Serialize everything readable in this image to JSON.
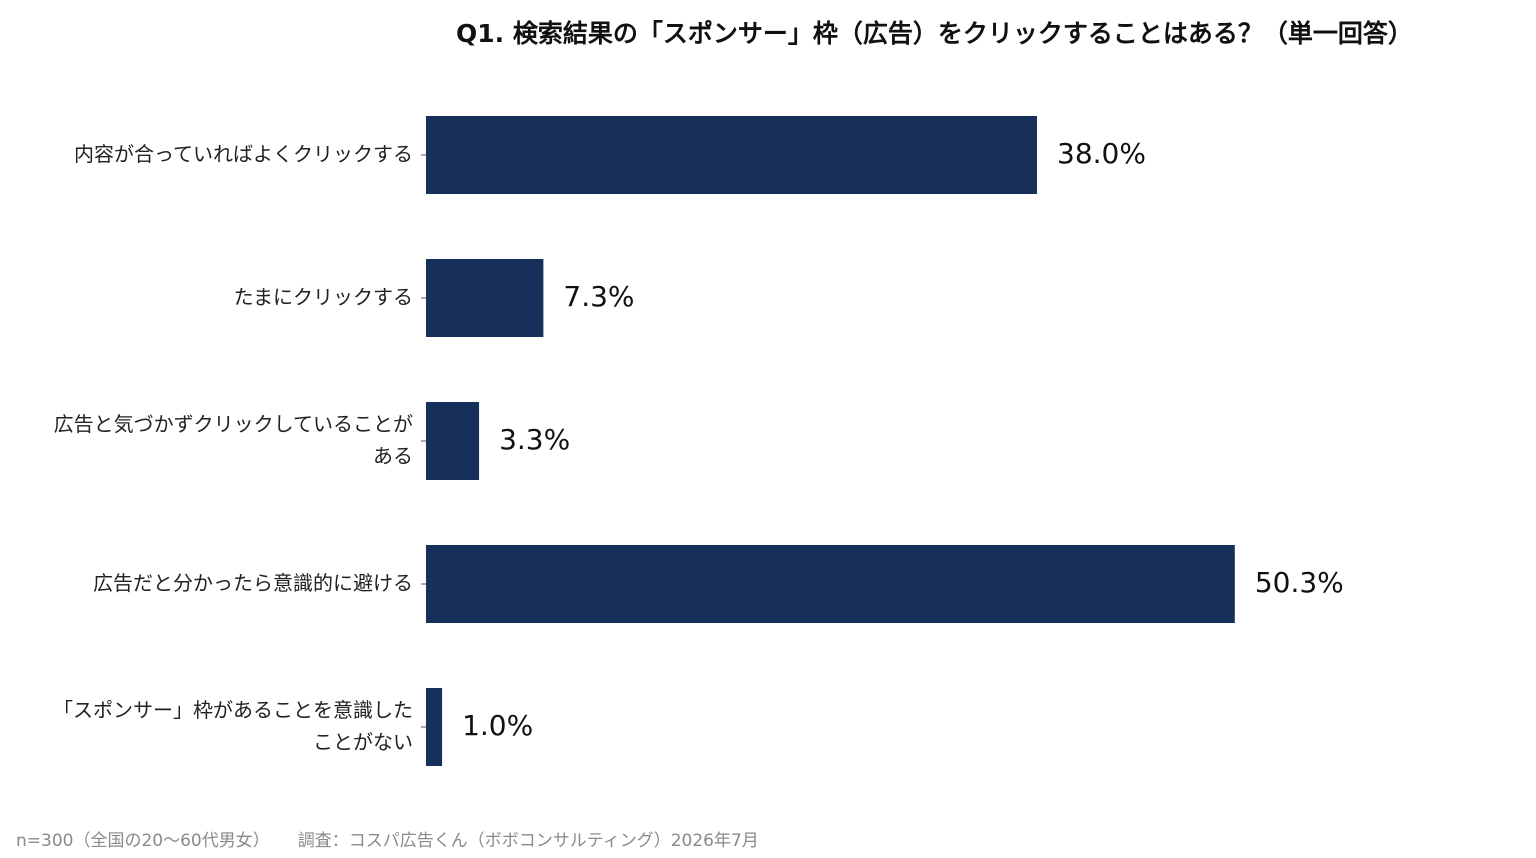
{
  "chart_data": {
    "type": "bar",
    "orientation": "horizontal",
    "title": "Q1. 検索結果の「スポンサー」枠（広告）をクリックすることはある？（単一回答）",
    "categories": [
      [
        "内容が合っていればよくクリックする"
      ],
      [
        "たまにクリックする"
      ],
      [
        "広告と気づかずクリックしていることが",
        "ある"
      ],
      [
        "広告だと分かったら意識的に避ける"
      ],
      [
        "「スポンサー」枠があることを意識した",
        "ことがない"
      ]
    ],
    "values": [
      38.0,
      7.3,
      3.3,
      50.3,
      1.0
    ],
    "value_labels": [
      "38.0%",
      "7.3%",
      "3.3%",
      "50.3%",
      "1.0%"
    ],
    "xlim": [
      0,
      100
    ],
    "grid": false,
    "legend": "none",
    "bar_color": "#17305b"
  },
  "footnote": {
    "sample": "n=300（全国の20〜60代男女）",
    "source": "調査：コスパ広告くん（ボボコンサルティング）2026年7月"
  }
}
